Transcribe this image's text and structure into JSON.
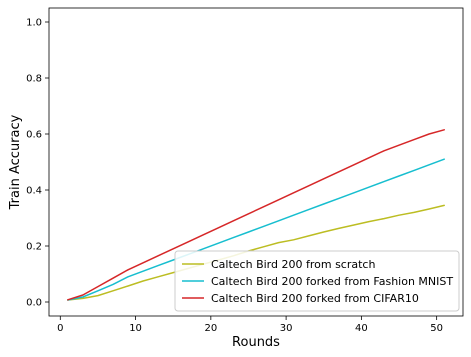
{
  "chart_data": {
    "type": "line",
    "title": "",
    "xlabel": "Rounds",
    "ylabel": "Train Accuracy",
    "xlim": [
      -1.5,
      53.5
    ],
    "ylim": [
      -0.05,
      1.05
    ],
    "xticks": [
      0,
      10,
      20,
      30,
      40,
      50
    ],
    "yticks": [
      0.0,
      0.2,
      0.4,
      0.6,
      0.8,
      1.0
    ],
    "xtick_labels": [
      "0",
      "10",
      "20",
      "30",
      "40",
      "50"
    ],
    "ytick_labels": [
      "0.0",
      "0.2",
      "0.4",
      "0.6",
      "0.8",
      "1.0"
    ],
    "grid": false,
    "legend_position": "bottom-right",
    "series": [
      {
        "name": "Caltech Bird 200 from scratch",
        "color": "#bcbd22",
        "x": [
          1,
          3,
          5,
          7,
          9,
          11,
          13,
          15,
          17,
          19,
          21,
          23,
          25,
          27,
          29,
          31,
          33,
          35,
          37,
          39,
          41,
          43,
          45,
          47,
          49,
          51
        ],
        "y": [
          0.007,
          0.013,
          0.023,
          0.04,
          0.057,
          0.075,
          0.09,
          0.105,
          0.12,
          0.135,
          0.15,
          0.165,
          0.182,
          0.197,
          0.212,
          0.222,
          0.236,
          0.25,
          0.263,
          0.275,
          0.287,
          0.298,
          0.31,
          0.32,
          0.332,
          0.345
        ]
      },
      {
        "name": "Caltech Bird 200 forked from Fashion MNIST",
        "color": "#17becf",
        "x": [
          1,
          3,
          5,
          7,
          9,
          11,
          13,
          15,
          17,
          19,
          21,
          23,
          25,
          27,
          29,
          31,
          33,
          35,
          37,
          39,
          41,
          43,
          45,
          47,
          49,
          51
        ],
        "y": [
          0.007,
          0.018,
          0.04,
          0.063,
          0.09,
          0.11,
          0.13,
          0.15,
          0.17,
          0.19,
          0.21,
          0.23,
          0.25,
          0.27,
          0.29,
          0.31,
          0.33,
          0.35,
          0.37,
          0.39,
          0.41,
          0.43,
          0.45,
          0.47,
          0.49,
          0.51
        ]
      },
      {
        "name": "Caltech Bird 200 forked from CIFAR10",
        "color": "#d62728",
        "x": [
          1,
          3,
          5,
          7,
          9,
          11,
          13,
          15,
          17,
          19,
          21,
          23,
          25,
          27,
          29,
          31,
          33,
          35,
          37,
          39,
          41,
          43,
          45,
          47,
          49,
          51
        ],
        "y": [
          0.008,
          0.025,
          0.055,
          0.085,
          0.115,
          0.14,
          0.165,
          0.19,
          0.215,
          0.24,
          0.265,
          0.29,
          0.315,
          0.34,
          0.365,
          0.39,
          0.415,
          0.44,
          0.465,
          0.49,
          0.515,
          0.54,
          0.56,
          0.58,
          0.6,
          0.615
        ]
      }
    ]
  }
}
